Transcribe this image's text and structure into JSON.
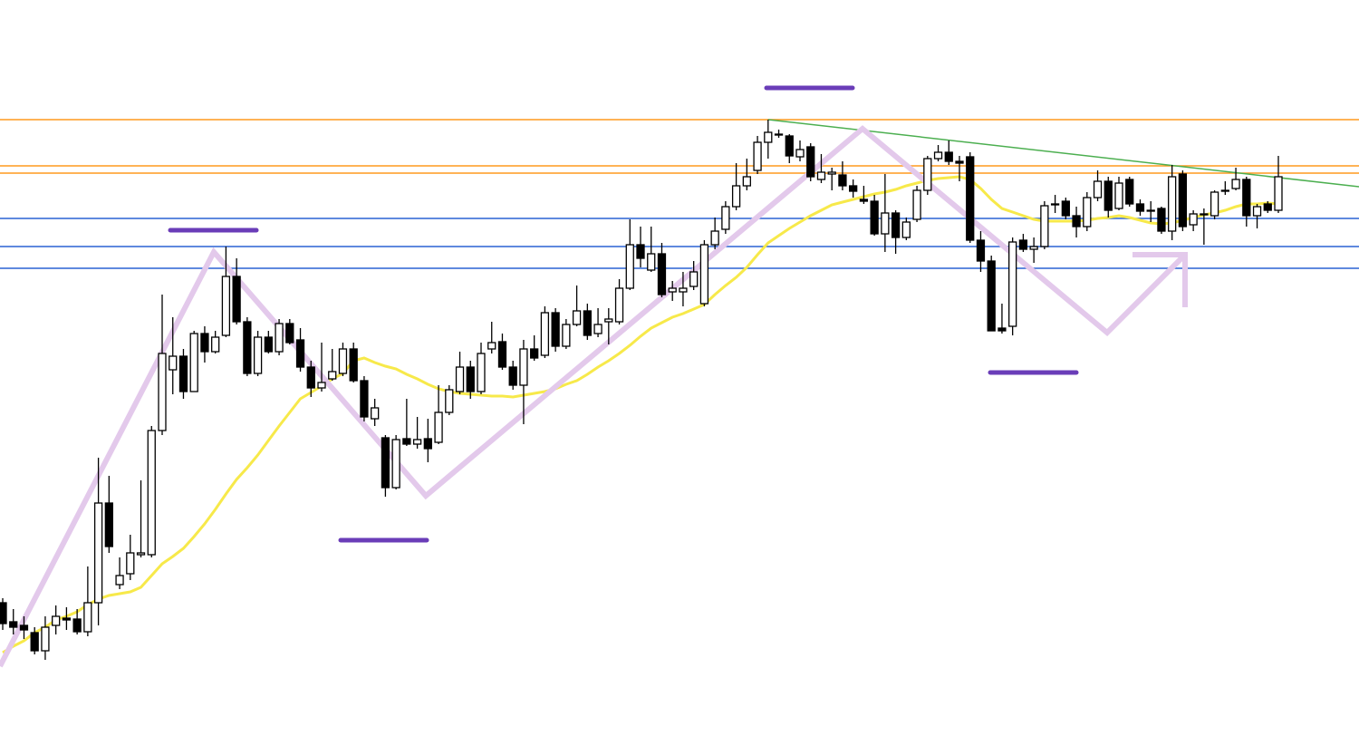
{
  "chart_data": {
    "type": "candlestick",
    "up_color": "#ffffff",
    "down_color": "#000000",
    "wick_color": "#000000",
    "ylim": [
      167,
      1000
    ],
    "open": [
      335,
      314,
      310,
      302,
      282,
      310,
      318,
      317,
      303,
      335,
      445,
      355,
      367,
      388,
      388,
      525,
      592,
      607,
      568,
      632,
      612,
      630,
      695,
      645,
      588,
      628,
      612,
      643,
      625,
      595,
      572,
      582,
      588,
      615,
      580,
      538,
      517,
      462,
      516,
      510,
      516,
      512,
      545,
      568,
      595,
      568,
      615,
      623,
      595,
      575,
      615,
      608,
      655,
      618,
      642,
      657,
      632,
      645,
      645,
      682,
      730,
      702,
      720,
      678,
      678,
      684,
      665,
      730,
      747,
      772,
      795,
      812,
      843,
      852,
      850,
      827,
      838,
      802,
      808,
      807,
      795,
      780,
      778,
      742,
      765,
      738,
      758,
      790,
      825,
      832,
      822,
      827,
      735,
      712,
      638,
      640,
      735,
      725,
      728,
      775,
      778,
      762,
      750,
      782,
      800,
      770,
      802,
      775,
      768,
      770,
      745,
      808,
      752,
      764,
      762,
      790,
      792,
      802,
      762,
      775,
      768
    ],
    "high": [
      340,
      328,
      320,
      308,
      320,
      332,
      330,
      328,
      375,
      495,
      475,
      385,
      410,
      470,
      530,
      675,
      650,
      615,
      635,
      640,
      635,
      728,
      715,
      650,
      635,
      635,
      648,
      648,
      638,
      602,
      622,
      615,
      622,
      622,
      585,
      560,
      520,
      520,
      560,
      540,
      538,
      575,
      575,
      612,
      602,
      622,
      645,
      632,
      602,
      625,
      630,
      662,
      660,
      648,
      685,
      665,
      660,
      660,
      692,
      758,
      750,
      750,
      732,
      690,
      700,
      712,
      735,
      760,
      778,
      820,
      825,
      850,
      868,
      857,
      852,
      845,
      842,
      830,
      815,
      822,
      802,
      795,
      785,
      808,
      768,
      760,
      795,
      828,
      840,
      845,
      828,
      832,
      745,
      718,
      665,
      738,
      742,
      738,
      778,
      785,
      782,
      772,
      788,
      812,
      805,
      805,
      805,
      780,
      778,
      772,
      818,
      812,
      768,
      770,
      790,
      800,
      815,
      805,
      775,
      778,
      828
    ],
    "low": [
      305,
      300,
      295,
      278,
      272,
      300,
      305,
      300,
      298,
      310,
      390,
      350,
      360,
      385,
      385,
      520,
      565,
      560,
      568,
      600,
      610,
      628,
      642,
      585,
      585,
      610,
      608,
      620,
      590,
      562,
      568,
      580,
      585,
      578,
      535,
      530,
      452,
      460,
      508,
      505,
      490,
      510,
      542,
      565,
      560,
      565,
      610,
      592,
      570,
      532,
      602,
      605,
      612,
      615,
      640,
      625,
      628,
      620,
      642,
      680,
      705,
      700,
      672,
      668,
      662,
      680,
      662,
      725,
      742,
      768,
      790,
      808,
      825,
      848,
      820,
      822,
      800,
      798,
      790,
      790,
      782,
      775,
      740,
      722,
      720,
      735,
      755,
      785,
      822,
      818,
      800,
      732,
      700,
      635,
      632,
      630,
      722,
      710,
      725,
      765,
      758,
      738,
      745,
      778,
      760,
      768,
      772,
      762,
      755,
      742,
      735,
      745,
      745,
      730,
      758,
      785,
      790,
      750,
      748,
      765,
      765
    ],
    "close": [
      312,
      308,
      305,
      282,
      308,
      320,
      316,
      303,
      335,
      445,
      397,
      365,
      390,
      390,
      525,
      610,
      607,
      568,
      632,
      612,
      628,
      695,
      645,
      588,
      628,
      612,
      643,
      622,
      595,
      572,
      578,
      590,
      615,
      580,
      540,
      550,
      462,
      515,
      510,
      515,
      505,
      545,
      570,
      595,
      568,
      610,
      622,
      595,
      575,
      615,
      605,
      655,
      618,
      642,
      657,
      630,
      642,
      648,
      682,
      730,
      715,
      720,
      675,
      682,
      682,
      700,
      730,
      745,
      772,
      795,
      805,
      843,
      854,
      852,
      828,
      835,
      805,
      810,
      810,
      795,
      789,
      778,
      742,
      765,
      738,
      755,
      790,
      825,
      832,
      822,
      820,
      735,
      712,
      635,
      635,
      733,
      725,
      728,
      773,
      775,
      762,
      750,
      782,
      800,
      768,
      798,
      775,
      767,
      768,
      745,
      805,
      750,
      764,
      764,
      788,
      790,
      802,
      762,
      772,
      768,
      805
    ],
    "ma": {
      "color": "#f7e94a",
      "values": [
        280,
        287,
        293,
        302,
        308,
        316,
        320,
        325,
        333,
        339,
        343,
        345,
        347,
        352,
        365,
        378,
        386,
        395,
        408,
        422,
        438,
        455,
        471,
        484,
        498,
        514,
        530,
        545,
        560,
        567,
        574,
        582,
        588,
        602,
        605,
        600,
        596,
        593,
        587,
        582,
        576,
        571,
        568,
        566,
        565,
        564,
        563,
        563,
        562,
        564,
        566,
        568,
        571,
        576,
        580,
        587,
        595,
        602,
        610,
        619,
        629,
        638,
        644,
        650,
        654,
        659,
        664,
        675,
        685,
        694,
        705,
        719,
        732,
        740,
        748,
        755,
        762,
        768,
        774,
        777,
        780,
        783,
        786,
        788,
        791,
        795,
        798,
        801,
        803,
        804,
        805,
        802,
        792,
        780,
        770,
        766,
        762,
        758,
        756,
        756,
        756,
        756,
        757,
        759,
        760,
        762,
        760,
        757,
        754,
        753,
        754,
        757,
        760,
        763,
        765,
        768,
        772,
        775,
        775,
        776,
        775
      ]
    },
    "levels": [
      {
        "value": 868,
        "color": "#ff9a1f"
      },
      {
        "value": 817,
        "color": "#ff9a1f"
      },
      {
        "value": 809,
        "color": "#ff9a1f"
      },
      {
        "value": 759,
        "color": "#2a62d4"
      },
      {
        "value": 728,
        "color": "#2a62d4"
      },
      {
        "value": 704,
        "color": "#2a62d4"
      }
    ]
  }
}
